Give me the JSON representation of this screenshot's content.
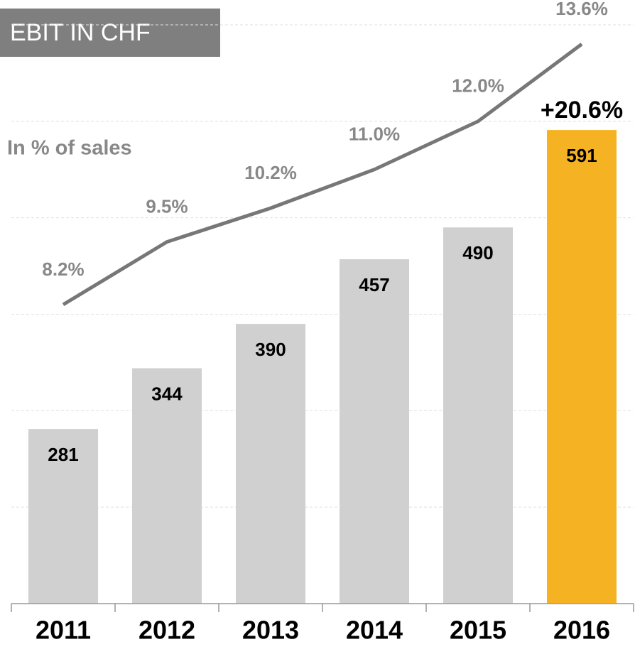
{
  "chart_data": {
    "type": "bar",
    "title": "EBIT IN CHF",
    "subtitle": "In % of sales",
    "annotation": "+20.6%",
    "categories": [
      "2011",
      "2012",
      "2013",
      "2014",
      "2015",
      "2016"
    ],
    "series": [
      {
        "name": "EBIT",
        "type": "bar",
        "colors": [
          "#d0d0d0",
          "#d0d0d0",
          "#d0d0d0",
          "#d0d0d0",
          "#d0d0d0",
          "#f5b324"
        ],
        "values": [
          281,
          344,
          390,
          457,
          490,
          591
        ]
      },
      {
        "name": "In % of sales",
        "type": "line",
        "axis": "y2",
        "color": "#777777",
        "values": [
          8.2,
          9.5,
          10.2,
          11.0,
          12.0,
          13.6
        ],
        "value_labels": [
          "8.2%",
          "9.5%",
          "10.2%",
          "11.0%",
          "12.0%",
          "13.6%"
        ]
      }
    ],
    "ylim": [
      100,
      700
    ],
    "yticks": [
      200,
      300,
      400,
      500,
      600,
      700
    ],
    "y2lim": [
      2,
      14
    ],
    "grid": true
  }
}
